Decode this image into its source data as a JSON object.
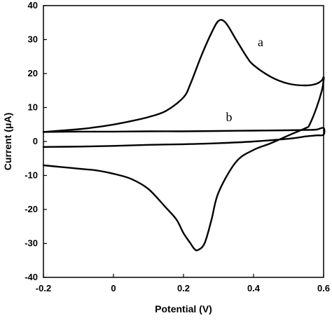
{
  "chart_data": {
    "type": "line",
    "title": "",
    "xlabel": "Potential (V)",
    "ylabel": "Current (μA)",
    "xlim": [
      -0.2,
      0.6
    ],
    "ylim": [
      -40,
      40
    ],
    "xticks": [
      -0.2,
      0,
      0.2,
      0.4,
      0.6
    ],
    "xtick_labels": [
      "-0.2",
      "0",
      "0.2",
      "0.4",
      "0.6"
    ],
    "yticks": [
      -40,
      -30,
      -20,
      -10,
      0,
      10,
      20,
      30,
      40
    ],
    "ytick_labels": [
      "-40",
      "-30",
      "-20",
      "-10",
      "0",
      "10",
      "20",
      "30",
      "40"
    ],
    "grid": false,
    "legend": "none",
    "series": [
      {
        "label": "a",
        "x": [
          -0.2,
          -0.15,
          -0.1,
          -0.05,
          0.0,
          0.05,
          0.1,
          0.15,
          0.2,
          0.22,
          0.25,
          0.28,
          0.3,
          0.32,
          0.35,
          0.38,
          0.4,
          0.45,
          0.5,
          0.55,
          0.58,
          0.595,
          0.6,
          0.6,
          0.595,
          0.58,
          0.56,
          0.55,
          0.5,
          0.45,
          0.4,
          0.35,
          0.3,
          0.28,
          0.26,
          0.24,
          0.23,
          0.22,
          0.2,
          0.18,
          0.15,
          0.1,
          0.05,
          0.0,
          -0.05,
          -0.1,
          -0.15,
          -0.2
        ],
        "y": [
          2.8,
          3.2,
          3.6,
          4.2,
          5.0,
          6.0,
          7.2,
          9.0,
          13.0,
          17.0,
          25.0,
          32.0,
          35.5,
          35.0,
          30.0,
          25.0,
          22.5,
          19.0,
          17.0,
          16.5,
          17.0,
          18.0,
          19.0,
          18.0,
          15.0,
          10.0,
          5.0,
          4.0,
          1.8,
          -0.5,
          -2.5,
          -6.0,
          -15.0,
          -23.0,
          -30.0,
          -32.0,
          -31.5,
          -30.0,
          -27.0,
          -23.0,
          -19.5,
          -14.0,
          -11.0,
          -9.5,
          -8.5,
          -8.0,
          -7.5,
          -7.0
        ]
      },
      {
        "label": "b",
        "x": [
          -0.2,
          -0.1,
          0.0,
          0.1,
          0.2,
          0.3,
          0.4,
          0.5,
          0.55,
          0.58,
          0.6,
          0.6,
          0.58,
          0.55,
          0.5,
          0.4,
          0.3,
          0.2,
          0.1,
          0.0,
          -0.1,
          -0.2
        ],
        "y": [
          2.8,
          2.9,
          2.9,
          3.0,
          3.0,
          3.1,
          3.2,
          3.3,
          3.4,
          3.5,
          4.0,
          2.0,
          1.8,
          1.5,
          0.8,
          0.0,
          -0.5,
          -0.8,
          -1.0,
          -1.3,
          -1.5,
          -1.6
        ]
      }
    ],
    "annotations": [
      {
        "text": "a",
        "x": 0.42,
        "y": 28
      },
      {
        "text": "b",
        "x": 0.33,
        "y": 6
      }
    ]
  }
}
